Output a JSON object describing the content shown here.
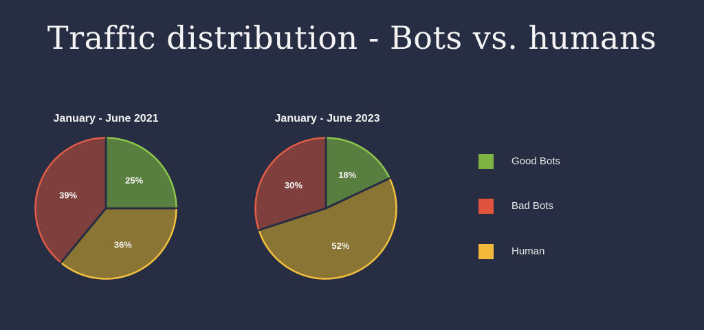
{
  "title": "Traffic distribution - Bots vs. humans",
  "legend": [
    {
      "label": "Good Bots",
      "color": "#7cb342"
    },
    {
      "label": "Bad Bots",
      "color": "#e0533c"
    },
    {
      "label": "Human",
      "color": "#f2b93b"
    }
  ],
  "chart_data": [
    {
      "type": "pie",
      "title": "January - June 2021",
      "categories": [
        "Good Bots",
        "Bad Bots",
        "Human"
      ],
      "values": [
        25,
        39,
        36
      ],
      "value_labels": [
        "25%",
        "39%",
        "36%"
      ],
      "colors": {
        "fill": [
          "#587f3f",
          "#7f3f3d",
          "#8a7535"
        ],
        "stroke": [
          "#8cc64a",
          "#e25d48",
          "#f2c13d"
        ]
      }
    },
    {
      "type": "pie",
      "title": "January - June 2023",
      "categories": [
        "Good Bots",
        "Bad Bots",
        "Human"
      ],
      "values": [
        18,
        30,
        52
      ],
      "value_labels": [
        "18%",
        "30%",
        "52%"
      ],
      "colors": {
        "fill": [
          "#587f3f",
          "#7f3f3d",
          "#8a7535"
        ],
        "stroke": [
          "#8cc64a",
          "#e25d48",
          "#f2c13d"
        ]
      }
    }
  ]
}
